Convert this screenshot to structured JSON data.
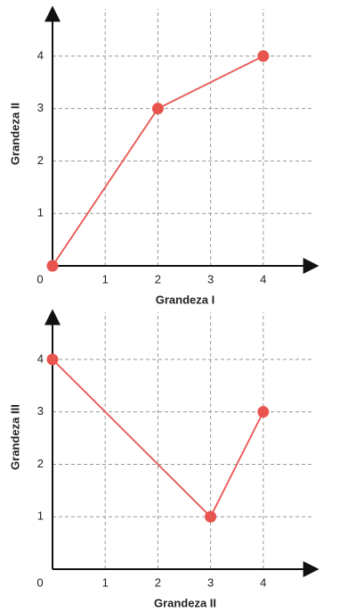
{
  "chart_data": [
    {
      "type": "line",
      "x_label": "Grandeza I",
      "y_label": "Grandeza II",
      "x": [
        0,
        2,
        4
      ],
      "values": [
        0,
        3,
        4
      ],
      "color": "#e8554e",
      "xlim": [
        0,
        5
      ],
      "ylim": [
        0,
        4.9
      ],
      "xticks": [
        0,
        1,
        2,
        3,
        4
      ],
      "yticks": [
        1,
        2,
        3,
        4
      ],
      "grid": true
    },
    {
      "type": "line",
      "x_label": "Grandeza II",
      "y_label": "Grandeza III",
      "x": [
        0,
        3,
        4
      ],
      "values": [
        4,
        1,
        3
      ],
      "color": "#e8554e",
      "xlim": [
        0,
        5
      ],
      "ylim": [
        0,
        4.9
      ],
      "xticks": [
        0,
        1,
        2,
        3,
        4
      ],
      "yticks": [
        1,
        2,
        3,
        4
      ],
      "grid": true
    }
  ]
}
